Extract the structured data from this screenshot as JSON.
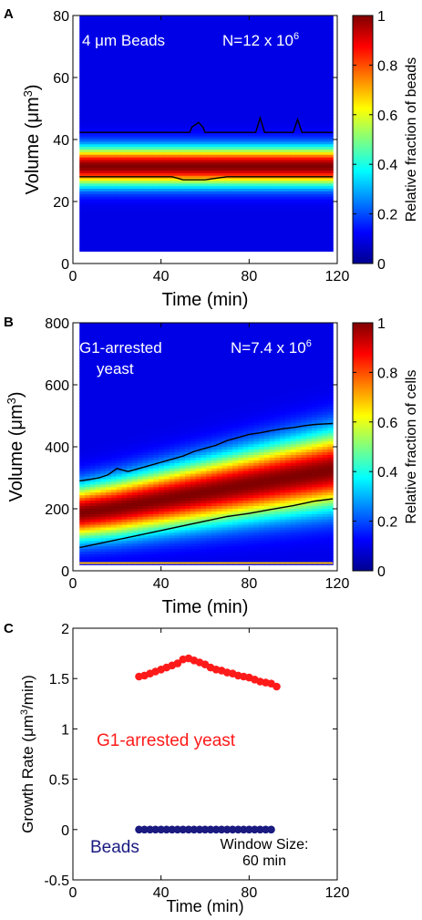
{
  "colors": {
    "red_series": "#ff1a1a",
    "blue_series": "#1a1a80",
    "heat_background": "#0a2bb5"
  },
  "chart_data": [
    {
      "panel": "A",
      "type": "heatmap",
      "annotation_left": "4 μm Beads",
      "annotation_right": "N=12 x 10^6",
      "xlabel": "Time (min)",
      "ylabel": "Volume (μm³)",
      "xlim": [
        0,
        120
      ],
      "ylim": [
        0,
        80
      ],
      "xticks": [
        "40",
        "80",
        "120"
      ],
      "yticks": [
        "0",
        "20",
        "40",
        "60",
        "80"
      ],
      "data_ylim": [
        4,
        80
      ],
      "colorbar_label": "Relative fraction of beads",
      "colorbar_ticks": [
        "0",
        "0.2",
        "0.4",
        "0.6",
        "0.8",
        "1"
      ],
      "center_volume": [
        31.5,
        31.5,
        31.5,
        31.5,
        31.5
      ],
      "center_time": [
        0,
        30,
        60,
        90,
        120
      ],
      "contour_upper": [
        [
          3,
          42.3
        ],
        [
          53,
          42.3
        ],
        [
          54,
          44
        ],
        [
          57,
          45.5
        ],
        [
          59,
          44
        ],
        [
          60,
          42.3
        ],
        [
          83,
          42.3
        ],
        [
          85,
          47
        ],
        [
          87,
          42.3
        ],
        [
          100,
          42.3
        ],
        [
          102,
          46.5
        ],
        [
          104,
          42.3
        ],
        [
          118,
          42.3
        ]
      ],
      "contour_lower": [
        [
          3,
          28
        ],
        [
          45,
          28
        ],
        [
          50,
          27
        ],
        [
          60,
          27
        ],
        [
          70,
          28
        ],
        [
          118,
          28
        ]
      ]
    },
    {
      "panel": "B",
      "type": "heatmap",
      "annotation_left": "G1-arrested",
      "annotation_left_2": "yeast",
      "annotation_right": "N=7.4 x 10^6",
      "xlabel": "Time (min)",
      "ylabel": "Volume (μm³)",
      "xlim": [
        0,
        120
      ],
      "ylim": [
        0,
        800
      ],
      "xticks": [
        "40",
        "80",
        "120"
      ],
      "yticks": [
        "0",
        "200",
        "400",
        "600",
        "800"
      ],
      "data_ylim": [
        20,
        800
      ],
      "colorbar_label": "Relative fraction of cells",
      "colorbar_ticks": [
        "0",
        "0.2",
        "0.4",
        "0.6",
        "0.8",
        "1"
      ],
      "center_time": [
        0,
        20,
        40,
        60,
        80,
        100,
        120
      ],
      "center_volume": [
        185,
        205,
        230,
        255,
        280,
        305,
        330
      ],
      "contour_upper": [
        [
          3,
          290
        ],
        [
          8,
          295
        ],
        [
          12,
          300
        ],
        [
          16,
          310
        ],
        [
          20,
          330
        ],
        [
          25,
          320
        ],
        [
          30,
          330
        ],
        [
          35,
          340
        ],
        [
          40,
          350
        ],
        [
          45,
          360
        ],
        [
          50,
          370
        ],
        [
          55,
          385
        ],
        [
          60,
          395
        ],
        [
          65,
          405
        ],
        [
          70,
          420
        ],
        [
          75,
          430
        ],
        [
          80,
          440
        ],
        [
          85,
          445
        ],
        [
          90,
          452
        ],
        [
          95,
          458
        ],
        [
          100,
          462
        ],
        [
          105,
          468
        ],
        [
          110,
          472
        ],
        [
          115,
          474
        ],
        [
          118,
          475
        ]
      ],
      "contour_lower": [
        [
          3,
          75
        ],
        [
          10,
          85
        ],
        [
          20,
          100
        ],
        [
          30,
          115
        ],
        [
          40,
          130
        ],
        [
          50,
          145
        ],
        [
          60,
          160
        ],
        [
          70,
          175
        ],
        [
          80,
          185
        ],
        [
          90,
          198
        ],
        [
          100,
          210
        ],
        [
          110,
          225
        ],
        [
          118,
          232
        ]
      ],
      "bottom_line_volume": 25
    },
    {
      "panel": "C",
      "type": "scatter",
      "xlabel": "Time (min)",
      "ylabel": "Growth Rate (μm³/min)",
      "xlim": [
        0,
        120
      ],
      "ylim": [
        -0.5,
        2
      ],
      "xticks": [
        "0",
        "40",
        "80",
        "120"
      ],
      "yticks": [
        "-0.5",
        "0",
        "0.5",
        "1",
        "1.5",
        "2"
      ],
      "series": [
        {
          "name": "G1-arrested yeast",
          "x": [
            30,
            32.5,
            35,
            37.5,
            40,
            42.5,
            45,
            47.5,
            50,
            52.5,
            55,
            57.5,
            60,
            62.5,
            65,
            67.5,
            70,
            72.5,
            75,
            77.5,
            80,
            82.5,
            85,
            87.5,
            90,
            92.5
          ],
          "y": [
            1.52,
            1.53,
            1.55,
            1.57,
            1.59,
            1.61,
            1.63,
            1.65,
            1.69,
            1.7,
            1.68,
            1.66,
            1.64,
            1.61,
            1.59,
            1.58,
            1.56,
            1.55,
            1.53,
            1.52,
            1.51,
            1.49,
            1.47,
            1.46,
            1.45,
            1.42
          ]
        },
        {
          "name": "Beads",
          "x": [
            30,
            32.5,
            35,
            37.5,
            40,
            42.5,
            45,
            47.5,
            50,
            52.5,
            55,
            57.5,
            60,
            62.5,
            65,
            67.5,
            70,
            72.5,
            75,
            77.5,
            80,
            82.5,
            85,
            87.5,
            90
          ],
          "y": [
            0,
            0,
            0,
            0,
            0,
            0,
            0,
            0,
            0,
            0,
            0,
            0,
            0,
            0,
            0,
            0,
            0,
            0,
            0,
            0,
            0,
            0,
            0,
            0,
            0
          ]
        }
      ],
      "annotation_1": "Window Size:",
      "annotation_2": "60 min"
    }
  ]
}
